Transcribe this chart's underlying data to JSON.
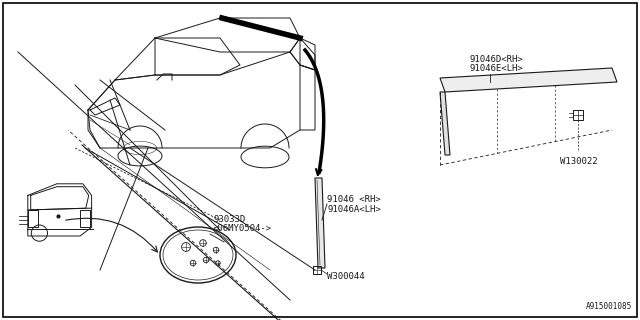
{
  "bg_color": "#ffffff",
  "border_color": "#000000",
  "line_color": "#1a1a1a",
  "diagram_id": "A915001085",
  "labels": {
    "part1": "91046D<RH>",
    "part1b": "91046E<LH>",
    "part2": "91046 <RH>",
    "part2b": "91046A<LH>",
    "part3": "93033D",
    "part3b": "<06MY0504->",
    "fastener1": "W130022",
    "fastener2": "W300044"
  }
}
